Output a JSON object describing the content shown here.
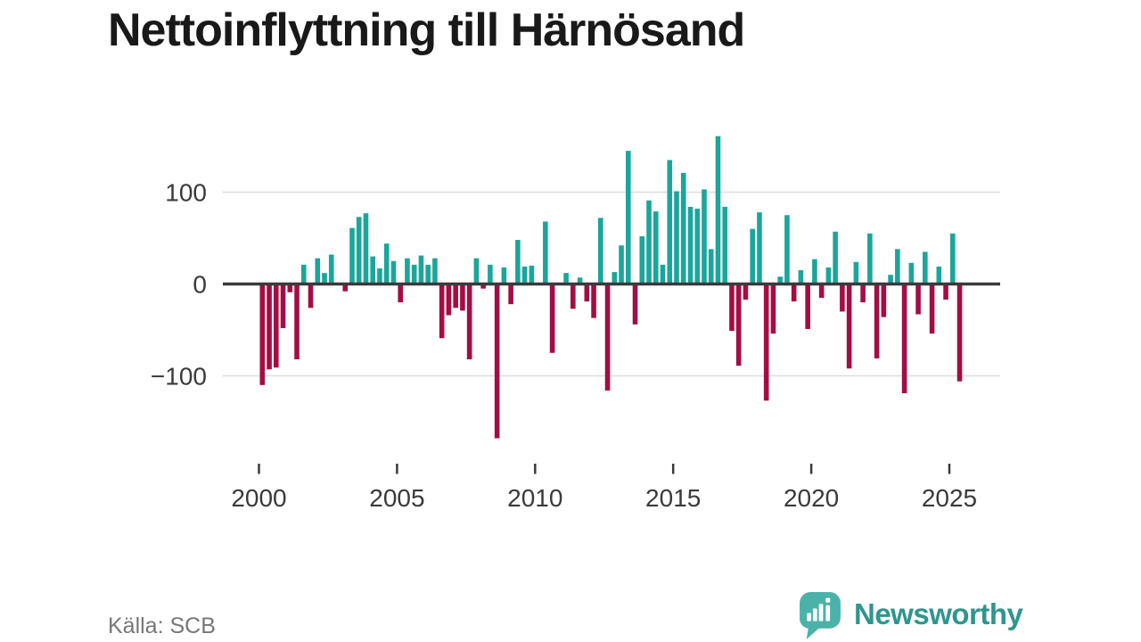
{
  "title": "Nettoinflyttning till Härnösand",
  "source": "Källa: SCB",
  "logo": {
    "text": "Newsworthy"
  },
  "colors": {
    "positive": "#1AA69B",
    "negative": "#A40D44",
    "grid": "#DCDCDC",
    "axis": "#3A3A3A",
    "tick_text": "#3A3A3A",
    "title_text": "#191919",
    "muted_text": "#777777",
    "logo_icon": "#4AB2A8",
    "logo_text": "#2E968D",
    "background": "#FFFFFF"
  },
  "chart_data": {
    "type": "bar",
    "title": "Nettoinflyttning till Härnösand",
    "frequency": "quarterly",
    "start": "2000 Q1",
    "end": "2025 Q2",
    "value_order": "Q1,Q2,Q3,Q4",
    "x_tick_labels": [
      "2000",
      "2005",
      "2010",
      "2015",
      "2020",
      "2025"
    ],
    "y_ticks": [
      100,
      0,
      -100
    ],
    "y_tick_labels": [
      "100",
      "0",
      "−100"
    ],
    "ylim": [
      -175,
      165
    ],
    "grid": "horizontal-only",
    "legend": "none",
    "values_by_year": {
      "2000": [
        -110,
        -93,
        -91,
        -48
      ],
      "2001": [
        -9,
        -82,
        21,
        -26
      ],
      "2002": [
        28,
        12,
        32,
        0
      ],
      "2003": [
        -8,
        61,
        73,
        77
      ],
      "2004": [
        30,
        17,
        44,
        25
      ],
      "2005": [
        -20,
        28,
        21,
        31
      ],
      "2006": [
        21,
        28,
        -59,
        -34
      ],
      "2007": [
        -26,
        -29,
        -82,
        28
      ],
      "2008": [
        -5,
        21,
        -168,
        18
      ],
      "2009": [
        -22,
        48,
        19,
        20
      ],
      "2010": [
        0,
        68,
        -75,
        0
      ],
      "2011": [
        12,
        -27,
        7,
        -19
      ],
      "2012": [
        -37,
        72,
        -116,
        13
      ],
      "2013": [
        42,
        145,
        -44,
        52
      ],
      "2014": [
        91,
        79,
        21,
        135
      ],
      "2015": [
        101,
        121,
        84,
        82
      ],
      "2016": [
        103,
        38,
        161,
        84
      ],
      "2017": [
        -51,
        -89,
        -17,
        60
      ],
      "2018": [
        78,
        -127,
        -54,
        8
      ],
      "2019": [
        75,
        -19,
        15,
        -49
      ],
      "2020": [
        27,
        -15,
        18,
        57
      ],
      "2021": [
        -30,
        -92,
        24,
        -20
      ],
      "2022": [
        55,
        -81,
        -36,
        10
      ],
      "2023": [
        38,
        -119,
        23,
        -33
      ],
      "2024": [
        35,
        -54,
        19,
        -17
      ],
      "2025": [
        55,
        -106
      ]
    }
  }
}
